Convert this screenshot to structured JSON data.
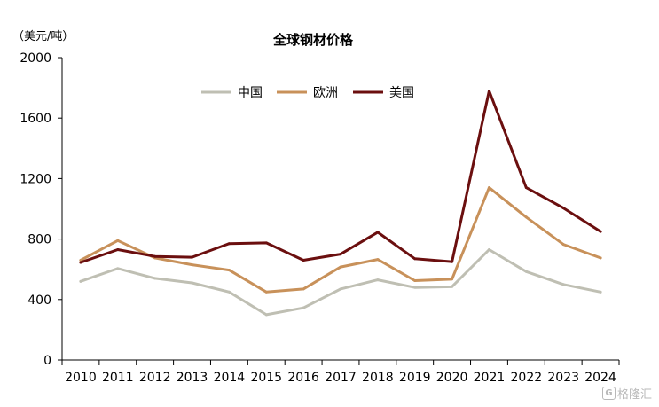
{
  "chart_data": {
    "type": "line",
    "title": "全球钢材价格",
    "unit_label": "（美元/吨）",
    "categories": [
      "2010",
      "2011",
      "2012",
      "2013",
      "2014",
      "2015",
      "2016",
      "2017",
      "2018",
      "2019",
      "2020",
      "2021",
      "2022",
      "2023",
      "2024"
    ],
    "ylim": [
      0,
      2000
    ],
    "yticks": [
      "0",
      "400",
      "800",
      "1200",
      "1600",
      "2000"
    ],
    "legend_placement": "top-center",
    "grid": false,
    "series": [
      {
        "name": "中国",
        "color": "#bfbfb3",
        "values": [
          520,
          605,
          540,
          510,
          450,
          300,
          345,
          470,
          530,
          480,
          485,
          730,
          585,
          500,
          450
        ]
      },
      {
        "name": "欧洲",
        "color": "#c8915a",
        "values": [
          660,
          790,
          675,
          630,
          595,
          450,
          470,
          615,
          665,
          525,
          535,
          1140,
          945,
          765,
          675
        ]
      },
      {
        "name": "美国",
        "color": "#6b0f0f",
        "values": [
          645,
          730,
          685,
          680,
          770,
          775,
          660,
          700,
          845,
          670,
          650,
          1780,
          1140,
          1005,
          850
        ]
      }
    ]
  },
  "watermark": {
    "icon": "G",
    "text": "格隆汇"
  }
}
